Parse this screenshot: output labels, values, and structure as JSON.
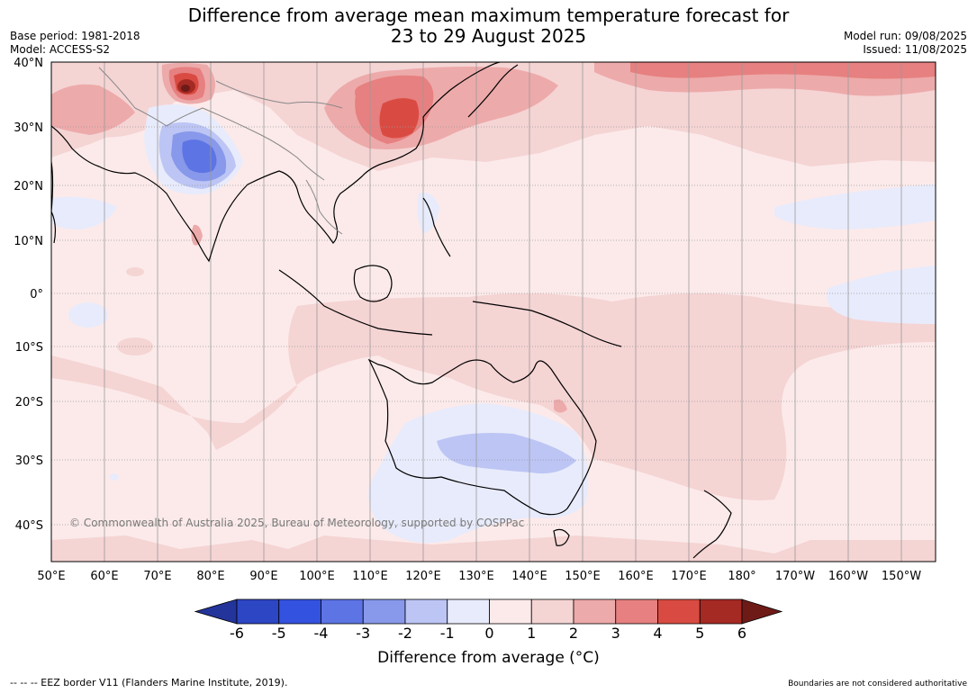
{
  "title": {
    "line1": "Difference from average mean maximum temperature forecast for",
    "line2": "23 to 29 August 2025"
  },
  "meta": {
    "base_period": "Base period: 1981-2018",
    "model": "Model: ACCESS-S2",
    "model_run": "Model run: 09/08/2025",
    "issued": "Issued: 11/08/2025"
  },
  "map": {
    "lat_labels": [
      "40°N",
      "30°N",
      "20°N",
      "10°N",
      "0°",
      "10°S",
      "20°S",
      "30°S",
      "40°S"
    ],
    "lon_labels": [
      "50°E",
      "60°E",
      "70°E",
      "80°E",
      "90°E",
      "100°E",
      "110°E",
      "120°E",
      "130°E",
      "140°E",
      "150°E",
      "160°E",
      "170°E",
      "180°",
      "170°W",
      "160°W",
      "150°W"
    ],
    "copyright": "© Commonwealth of Australia 2025, Bureau of Meteorology, supported by COSPPac"
  },
  "colorbar": {
    "title": "Difference from average (°C)",
    "ticks": [
      "-6",
      "-5",
      "-4",
      "-3",
      "-2",
      "-1",
      "0",
      "1",
      "2",
      "3",
      "4",
      "5",
      "6"
    ],
    "colors": [
      "#23349a",
      "#2c46c4",
      "#3452e0",
      "#5d74e4",
      "#8898ea",
      "#bcc5f4",
      "#e8ebfb",
      "#fceaea",
      "#f5d4d4",
      "#edaaaa",
      "#e78080",
      "#d94b42",
      "#a52a23",
      "#6e1b18"
    ]
  },
  "footer": {
    "eez": "--  --  -- EEZ border V11 (Flanders Marine Institute, 2019).",
    "boundaries": "Boundaries are not considered authoritative"
  }
}
